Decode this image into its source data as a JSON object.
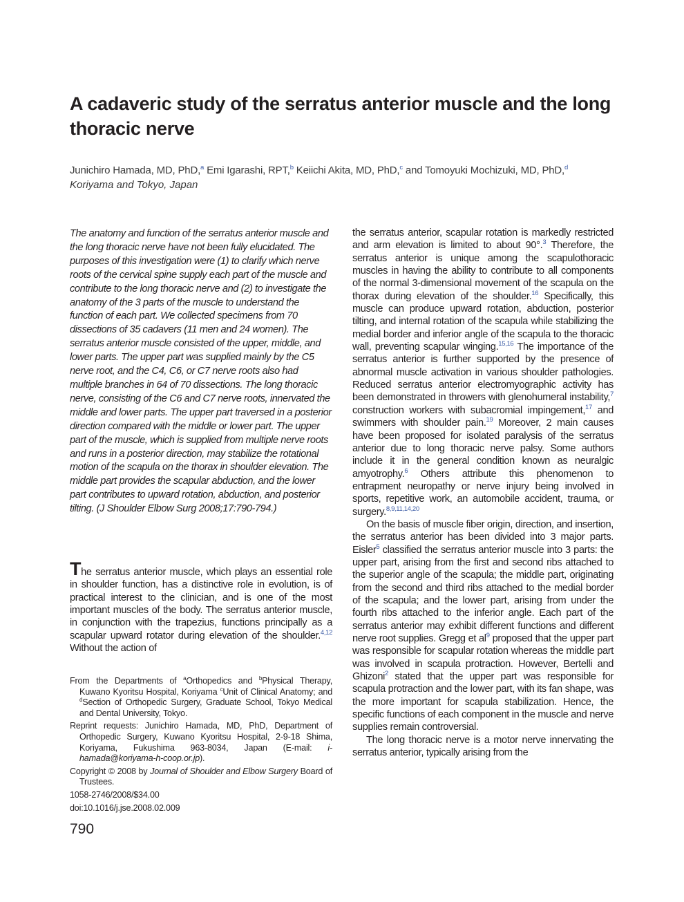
{
  "header": {
    "title": "A cadaveric study of the serratus anterior muscle and the long thoracic nerve",
    "authors": [
      {
        "text": "Junichiro Hamada, MD, PhD,"
      },
      {
        "sup": "a"
      },
      {
        "text": " Emi Igarashi, RPT,"
      },
      {
        "sup": "b"
      },
      {
        "text": " Keiichi Akita, MD, PhD,"
      },
      {
        "sup": "c"
      },
      {
        "text": " and Tomoyuki Mochizuki, MD, PhD,"
      },
      {
        "sup": "d"
      }
    ],
    "location": "Koriyama and Tokyo, Japan"
  },
  "abstract": "The anatomy and function of the serratus anterior muscle and the long thoracic nerve have not been fully elucidated. The purposes of this investigation were (1) to clarify which nerve roots of the cervical spine supply each part of the muscle and contribute to the long thoracic nerve and (2) to investigate the anatomy of the 3 parts of the muscle to understand the function of each part. We collected specimens from 70 dissections of 35 cadavers (11 men and 24 women). The serratus anterior muscle consisted of the upper, middle, and lower parts. The upper part was supplied mainly by the C5 nerve root, and the C4, C6, or C7 nerve roots also had multiple branches in 64 of 70 dissections. The long thoracic nerve, consisting of the C6 and C7 nerve roots, innervated the middle and lower parts. The upper part traversed in a posterior direction compared with the middle or lower part. The upper part of the muscle, which is supplied from multiple nerve roots and runs in a posterior direction, may stabilize the rotational motion of the scapula on the thorax in shoulder elevation. The middle part provides the scapular abduction, and the lower part contributes to upward rotation, abduction, and posterior tilting. (J Shoulder Elbow Surg 2008;17:790-794.)",
  "intro": [
    {
      "text": "The serratus anterior muscle, which plays an essential role in shoulder function, has a distinctive role in evolution, is of practical interest to the clinician, and is one of the most important muscles of the body. The serratus anterior muscle, in conjunction with the trapezius, functions principally as a scapular upward rotator during elevation of the shoulder."
    },
    {
      "sup": "4,12"
    },
    {
      "text": " Without the action of"
    }
  ],
  "footnotes": {
    "departments": [
      {
        "text": "From the Departments of "
      },
      {
        "sup": "a"
      },
      {
        "text": "Orthopedics and "
      },
      {
        "sup": "b"
      },
      {
        "text": "Physical Therapy, Kuwano Kyoritsu Hospital, Koriyama "
      },
      {
        "sup": "c"
      },
      {
        "text": "Unit of Clinical Anatomy; and "
      },
      {
        "sup": "d"
      },
      {
        "text": "Section of Orthopedic Surgery, Graduate School, Tokyo Medical and Dental University, Tokyo."
      }
    ],
    "reprint": [
      {
        "text": "Reprint requests: Junichiro Hamada, MD, PhD, Department of Orthopedic Surgery, Kuwano Kyoritsu Hospital, 2-9-18 Shima, Koriyama, Fukushima 963-8034, Japan (E-mail: "
      },
      {
        "italic": "i-hamada@koriyama-h-coop.or.jp"
      },
      {
        "text": ")."
      }
    ],
    "copyright": [
      {
        "text": "Copyright © 2008 by "
      },
      {
        "italic": "Journal of Shoulder and Elbow Surgery"
      },
      {
        "text": " Board of Trustees."
      }
    ],
    "issn": "1058-2746/2008/$34.00",
    "doi": "doi:10.1016/j.jse.2008.02.009"
  },
  "page_number": "790",
  "right_column": [
    [
      {
        "text": "the serratus anterior, scapular rotation is markedly restricted and arm elevation is limited to about 90°."
      },
      {
        "sup": "3"
      },
      {
        "text": " Therefore, the serratus anterior is unique among the scapulothoracic muscles in having the ability to contribute to all components of the normal 3-dimensional movement of the scapula on the thorax during elevation of the shoulder."
      },
      {
        "sup": "16"
      },
      {
        "text": " Specifically, this muscle can produce upward rotation, abduction, posterior tilting, and internal rotation of the scapula while stabilizing the medial border and inferior angle of the scapula to the thoracic wall, preventing scapular winging."
      },
      {
        "sup": "15,16"
      },
      {
        "text": " The importance of the serratus anterior is further supported by the presence of abnormal muscle activation in various shoulder pathologies. Reduced serratus anterior electromyographic activity has been demonstrated in throwers with glenohumeral instability,"
      },
      {
        "sup": "7"
      },
      {
        "text": " construction workers with subacromial impingement,"
      },
      {
        "sup": "17"
      },
      {
        "text": " and swimmers with shoulder pain."
      },
      {
        "sup": "19"
      },
      {
        "text": " Moreover, 2 main causes have been proposed for isolated paralysis of the serratus anterior due to long thoracic nerve palsy. Some authors include it in the general condition known as neuralgic amyotrophy."
      },
      {
        "sup": "6"
      },
      {
        "text": " Others attribute this phenomenon to entrapment neuropathy or nerve injury being involved in sports, repetitive work, an automobile accident, trauma, or surgery."
      },
      {
        "sup": "8,9,11,14,20"
      }
    ],
    [
      {
        "text": "On the basis of muscle fiber origin, direction, and insertion, the serratus anterior has been divided into 3 major parts. Eisler"
      },
      {
        "sup": "5"
      },
      {
        "text": " classified the serratus anterior muscle into 3 parts: the upper part, arising from the first and second ribs attached to the superior angle of the scapula; the middle part, originating from the second and third ribs attached to the medial border of the scapula; and the lower part, arising from under the fourth ribs attached to the inferior angle. Each part of the serratus anterior may exhibit different functions and different nerve root supplies. Gregg et al"
      },
      {
        "sup": "9"
      },
      {
        "text": " proposed that the upper part was responsible for scapular rotation whereas the middle part was involved in scapula protraction. However, Bertelli and Ghizoni"
      },
      {
        "sup": "2"
      },
      {
        "text": " stated that the upper part was responsible for scapula protraction and the lower part, with its fan shape, was the more important for scapula stabilization. Hence, the specific functions of each component in the muscle and nerve supplies remain controversial."
      }
    ],
    [
      {
        "text": "The long thoracic nerve is a motor nerve innervating the serratus anterior, typically arising from the"
      }
    ]
  ]
}
